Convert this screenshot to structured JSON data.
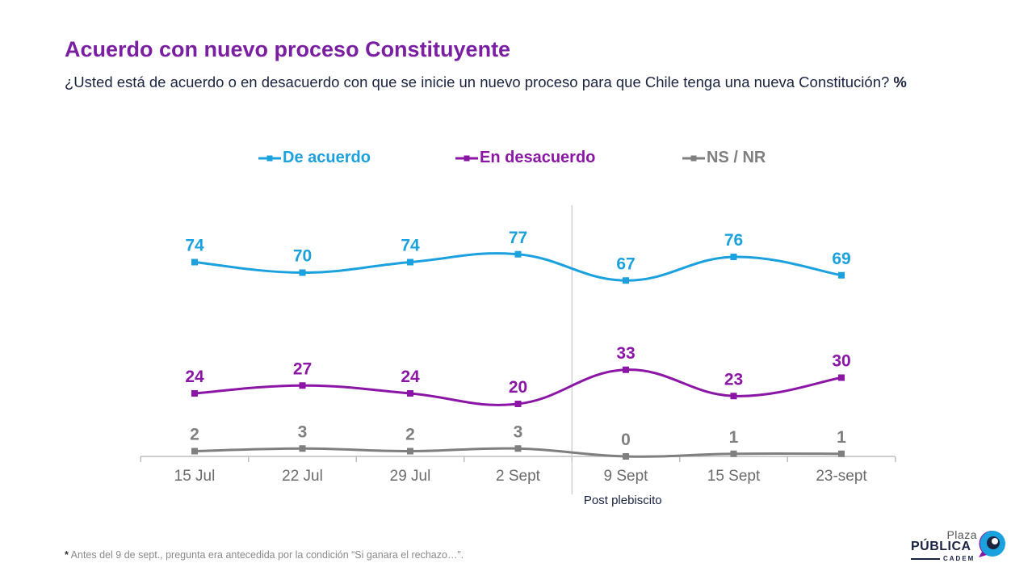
{
  "header": {
    "title": "Acuerdo con nuevo proceso Constituyente",
    "subtitle": "¿Usted está de acuerdo o en desacuerdo con que se inicie un nuevo proceso para que Chile tenga una nueva Constitución?",
    "subtitle_unit": "%"
  },
  "chart_data": {
    "type": "line",
    "categories": [
      "15 Jul",
      "22 Jul",
      "29 Jul",
      "2 Sept",
      "9 Sept",
      "15 Sept",
      "23-sept"
    ],
    "series": [
      {
        "name": "De acuerdo",
        "color": "#1ba1dd",
        "values": [
          74,
          70,
          74,
          77,
          67,
          76,
          69
        ]
      },
      {
        "name": "En desacuerdo",
        "color": "#8b16a6",
        "values": [
          24,
          27,
          24,
          20,
          33,
          23,
          30
        ]
      },
      {
        "name": "NS / NR",
        "color": "#7f7f7f",
        "values": [
          2,
          3,
          2,
          3,
          0,
          1,
          1
        ]
      }
    ],
    "ylim": [
      0,
      100
    ],
    "grid": false,
    "legend_position": "top",
    "annotation": "Post plebiscito",
    "annotation_after_category": "2 Sept"
  },
  "footnote": {
    "marker": "*",
    "text": "Antes del 9 de sept., pregunta era antecedida por la condición “Si ganara el rechazo…”."
  },
  "logo": {
    "line1": "Plaza",
    "line2": "PÚBLICA",
    "line3": "CADEM"
  }
}
